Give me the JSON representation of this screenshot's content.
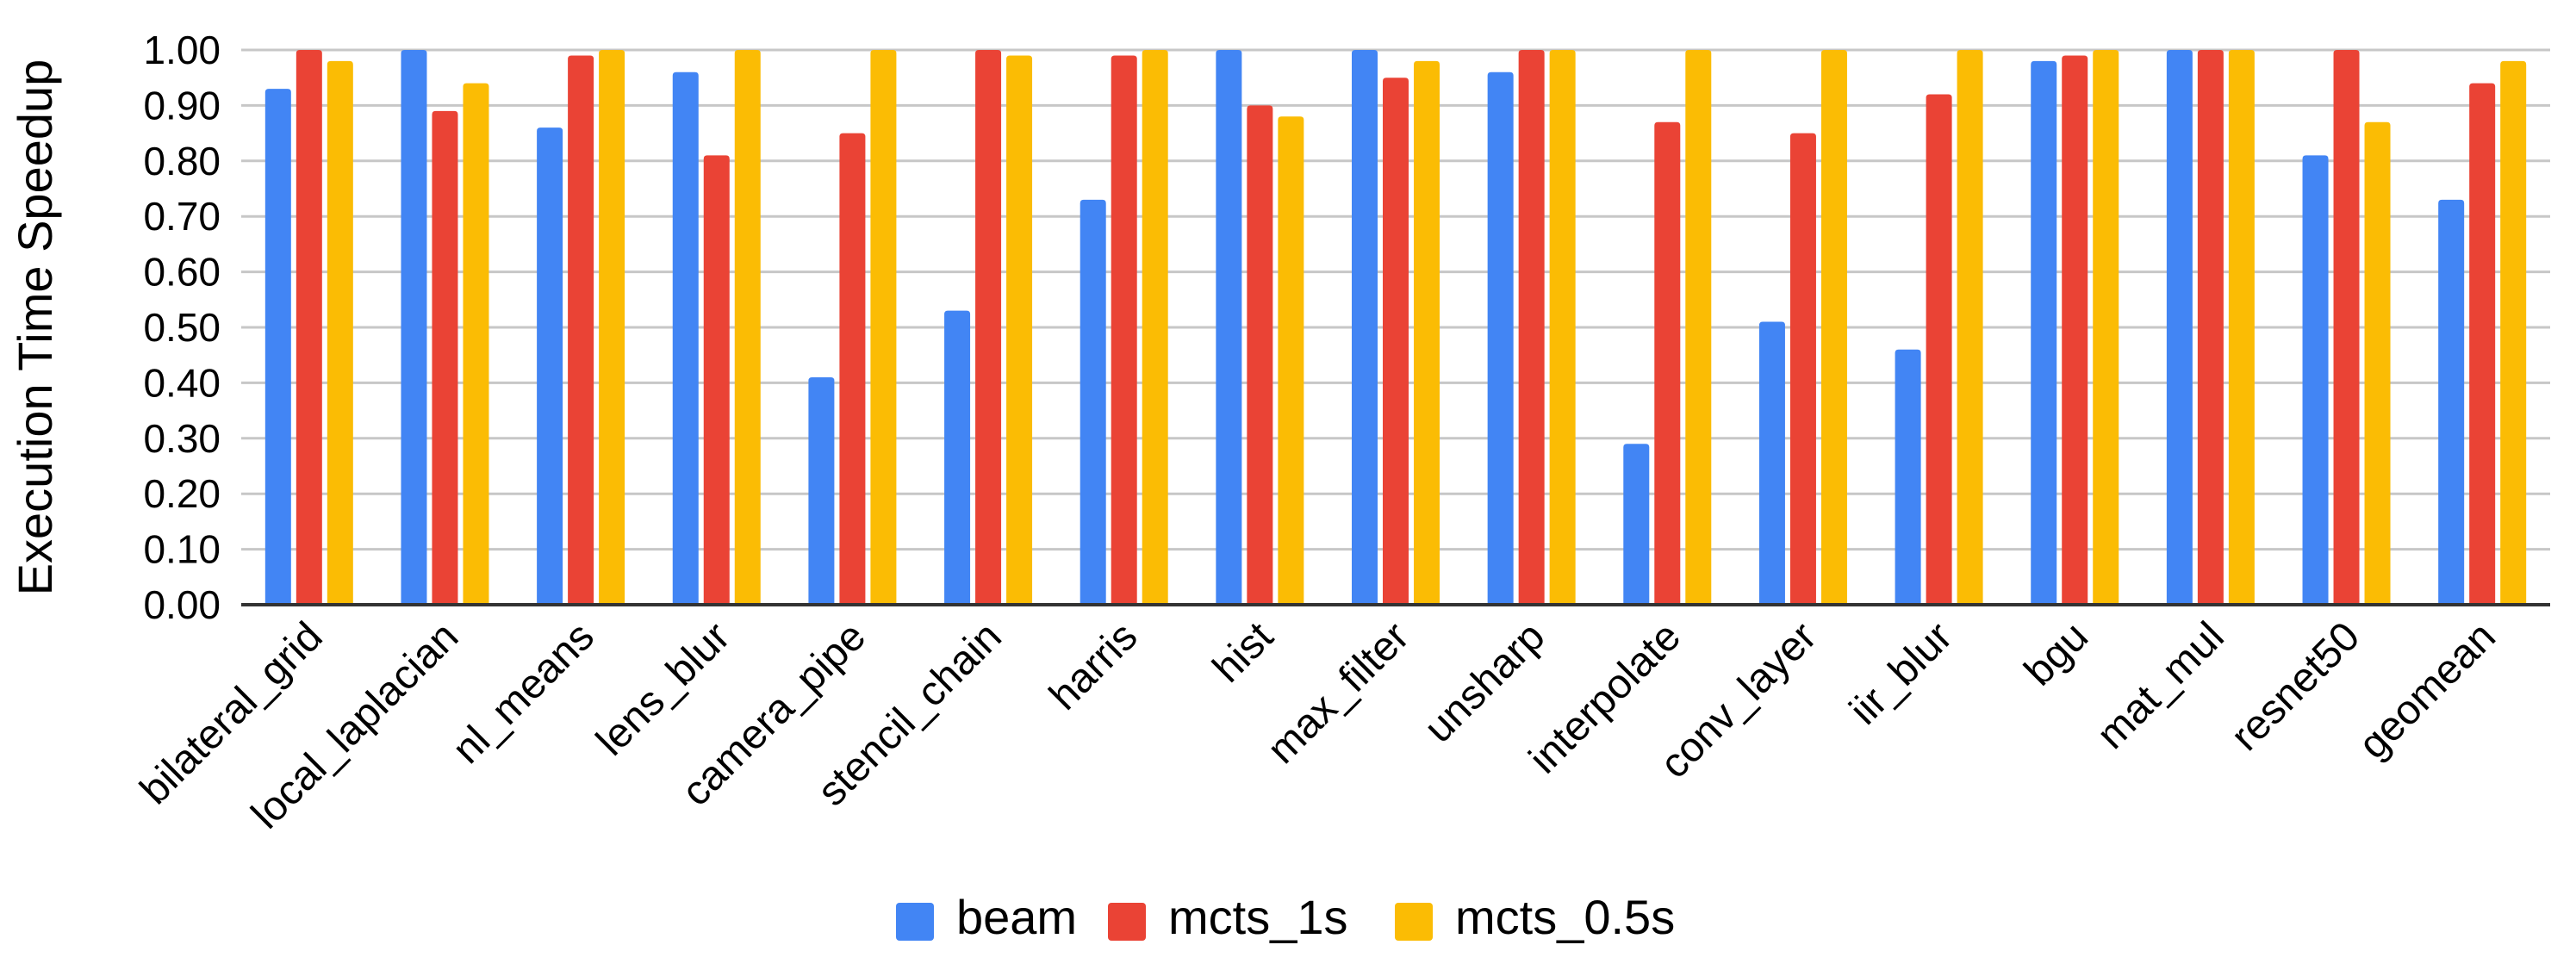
{
  "chart_data": {
    "type": "bar",
    "title": "",
    "xlabel": "",
    "ylabel": "Execution Time Speedup",
    "ylim": [
      0,
      1.0
    ],
    "yticks": [
      "0.00",
      "0.10",
      "0.20",
      "0.30",
      "0.40",
      "0.50",
      "0.60",
      "0.70",
      "0.80",
      "0.90",
      "1.00"
    ],
    "ytick_step": 0.1,
    "grid": true,
    "legend_position": "bottom",
    "categories": [
      "bilateral_grid",
      "local_laplacian",
      "nl_means",
      "lens_blur",
      "camera_pipe",
      "stencil_chain",
      "harris",
      "hist",
      "max_filter",
      "unsharp",
      "interpolate",
      "conv_layer",
      "iir_blur",
      "bgu",
      "mat_mul",
      "resnet50",
      "geomean"
    ],
    "series": [
      {
        "name": "beam",
        "color": "#4285F4",
        "values": [
          0.93,
          1.0,
          0.86,
          0.96,
          0.41,
          0.53,
          0.73,
          1.0,
          1.0,
          0.96,
          0.29,
          0.51,
          0.46,
          0.98,
          1.0,
          0.81,
          0.73
        ]
      },
      {
        "name": "mcts_1s",
        "color": "#EA4335",
        "values": [
          1.0,
          0.89,
          0.99,
          0.81,
          0.85,
          1.0,
          0.99,
          0.9,
          0.95,
          1.0,
          0.87,
          0.85,
          0.92,
          0.99,
          1.0,
          1.0,
          0.94
        ]
      },
      {
        "name": "mcts_0.5s",
        "color": "#FBBC04",
        "values": [
          0.98,
          0.94,
          1.0,
          1.0,
          1.0,
          0.99,
          1.0,
          0.88,
          0.98,
          1.0,
          1.0,
          1.0,
          1.0,
          1.0,
          1.0,
          0.87,
          0.98
        ]
      }
    ]
  }
}
